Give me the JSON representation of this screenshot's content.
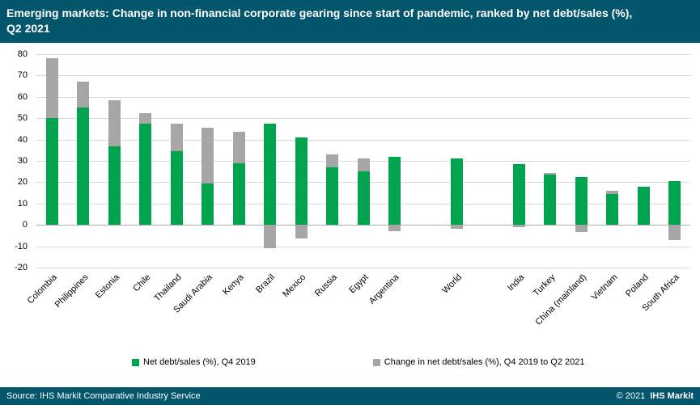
{
  "header": {
    "title": "Emerging markets: Change in non-financial corporate gearing since start of pandemic, ranked by net debt/sales (%), Q2 2021",
    "bg_color": "#04566C"
  },
  "footer": {
    "source": "Source: IHS Markit Comparative Industry Service",
    "copyright": "© 2021",
    "brand": "IHS Markit"
  },
  "chart_data": {
    "type": "bar",
    "stacked": true,
    "title": "Emerging markets: Change in non-financial corporate gearing since start of pandemic, ranked by net debt/sales (%), Q2 2021",
    "ylim": [
      -20,
      80
    ],
    "ytick_step": 10,
    "grid": true,
    "legend_position": "bottom",
    "categories": [
      "Colombia",
      "Philippines",
      "Estonia",
      "Chile",
      "Thailand",
      "Saudi Arabia",
      "Kenya",
      "Brazil",
      "Mexico",
      "Russia",
      "Egypt",
      "Argentina",
      "",
      "World",
      "",
      "India",
      "Turkey",
      "China (mainland)",
      "Vietnam",
      "Poland",
      "South Africa"
    ],
    "series": [
      {
        "name": "Net debt/sales (%), Q4 2019",
        "color": "#00A44F",
        "values": [
          50,
          55,
          37,
          47.5,
          34.5,
          19.5,
          29,
          47.5,
          41,
          27,
          25,
          32,
          null,
          31,
          null,
          28.5,
          23.5,
          22.5,
          14.5,
          18,
          20.5
        ]
      },
      {
        "name": "Change in net debt/sales (%), Q4 2019 to Q2 2021",
        "color": "#A6A6A6",
        "values": [
          28,
          12,
          21.5,
          5,
          13,
          26,
          14.5,
          -11,
          -6.5,
          6,
          6,
          -3,
          null,
          -2,
          null,
          -1,
          1,
          -3.5,
          1.5,
          0,
          -7
        ]
      }
    ]
  }
}
